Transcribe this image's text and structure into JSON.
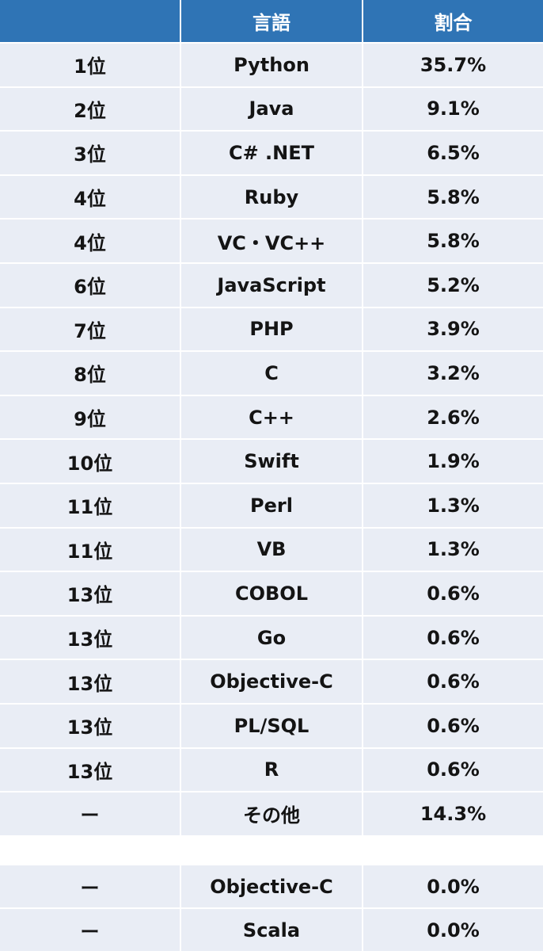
{
  "table": {
    "header": [
      "言語",
      "割合"
    ],
    "rows": [
      [
        "1位",
        "Python",
        "35.7%"
      ],
      [
        "2位",
        "Java",
        "9.1%"
      ],
      [
        "3位",
        "C# .NET",
        "6.5%"
      ],
      [
        "4位",
        "Ruby",
        "5.8%"
      ],
      [
        "4位",
        "VC・VC++",
        "5.8%"
      ],
      [
        "6位",
        "JavaScript",
        "5.2%"
      ],
      [
        "7位",
        "PHP",
        "3.9%"
      ],
      [
        "8位",
        "C",
        "3.2%"
      ],
      [
        "9位",
        "C++",
        "2.6%"
      ],
      [
        "10位",
        "Swift",
        "1.9%"
      ],
      [
        "11位",
        "Perl",
        "1.3%"
      ],
      [
        "11位",
        "VB",
        "1.3%"
      ],
      [
        "13位",
        "COBOL",
        "0.6%"
      ],
      [
        "13位",
        "Go",
        "0.6%"
      ],
      [
        "13位",
        "Objective-C",
        "0.6%"
      ],
      [
        "13位",
        "PL/SQL",
        "0.6%"
      ],
      [
        "13位",
        "R",
        "0.6%"
      ],
      [
        "ー",
        "その他",
        "14.3%"
      ]
    ],
    "extra_rows": [
      [
        "ー",
        "Objective-C",
        "0.0%"
      ],
      [
        "ー",
        "Scala",
        "0.0%"
      ]
    ]
  }
}
